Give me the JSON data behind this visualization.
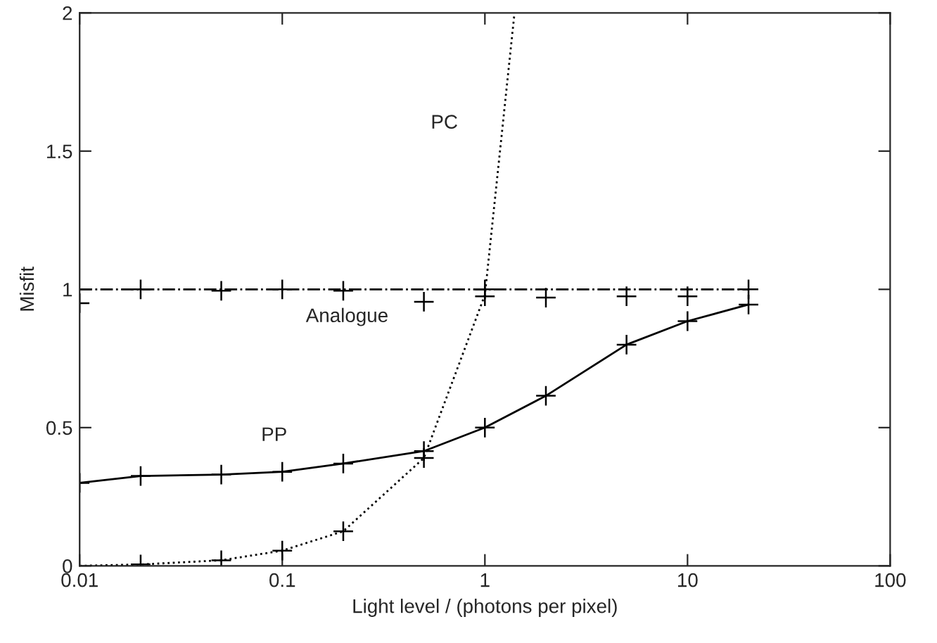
{
  "chart_data": {
    "type": "line",
    "xlabel": "Light level / (photons per pixel)",
    "ylabel": "Misfit",
    "log": "x",
    "xlim": [
      0.01,
      100
    ],
    "xticks": [
      0.01,
      0.1,
      1,
      10,
      100
    ],
    "ylim": [
      0,
      2
    ],
    "yticks": [
      0,
      0.5,
      1,
      1.5,
      2
    ],
    "grid": false,
    "legend": false,
    "series": [
      {
        "color": "#000000",
        "line_style": "dashdot",
        "marker": "none",
        "x": [
          0.01,
          20
        ],
        "values": [
          1,
          1
        ]
      },
      {
        "type": "scatter",
        "color": "#000000",
        "marker": "cross",
        "x": [
          0.01,
          0.02,
          0.05,
          0.1,
          0.2,
          0.5,
          1,
          1,
          2,
          5,
          10,
          20
        ],
        "values": [
          0.95,
          1.0,
          0.995,
          1.0,
          0.995,
          0.955,
          0.975,
          1.0,
          0.97,
          0.975,
          0.975,
          1.0
        ]
      },
      {
        "color": "#000000",
        "line_style": "solid",
        "marker": "cross",
        "x": [
          0.01,
          0.02,
          0.05,
          0.1,
          0.2,
          0.5,
          1,
          2,
          5,
          10,
          20
        ],
        "values": [
          0.3,
          0.325,
          0.33,
          0.34,
          0.37,
          0.415,
          0.5,
          0.615,
          0.8,
          0.885,
          0.945
        ]
      },
      {
        "color": "#000000",
        "line_style": "dotted",
        "marker": "none",
        "x": [
          0.01,
          0.02,
          0.05,
          0.1,
          0.2,
          0.5,
          1,
          1.4
        ],
        "values": [
          0,
          0.005,
          0.02,
          0.055,
          0.125,
          0.39,
          0.98,
          2
        ]
      },
      {
        "type": "scatter",
        "color": "#000000",
        "marker": "cross",
        "x": [
          0.02,
          0.05,
          0.1,
          0.2,
          0.5
        ],
        "values": [
          0.005,
          0.02,
          0.055,
          0.125,
          0.39
        ]
      }
    ],
    "annotations": [
      "PC",
      "Analogue",
      "PP"
    ]
  }
}
